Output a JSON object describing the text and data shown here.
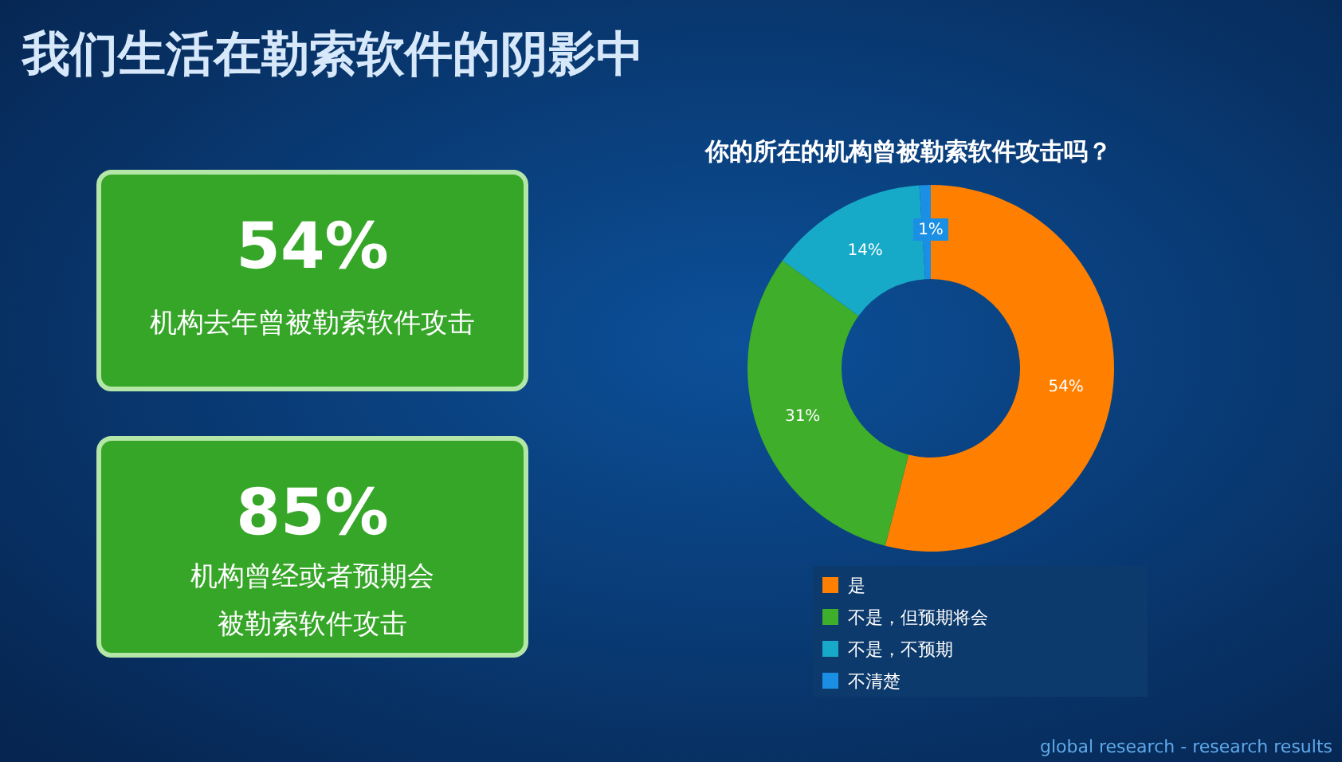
{
  "chart_data": [
    {
      "type": "other",
      "title": "我们生活在勒索软件的阴影中",
      "annotations": [
        "global research - research results"
      ]
    },
    {
      "type": "other",
      "title": "54%",
      "annotations": [
        "机构去年曾被勒索软件攻击"
      ]
    },
    {
      "type": "other",
      "title": "85%",
      "annotations": [
        "机构曾经或者预期会",
        "被勒索软件攻击"
      ]
    },
    {
      "type": "donut",
      "title": "你的所在的机构曾被勒索软件攻击吗？",
      "categories": [
        "是",
        "不是，但预期将会",
        "不是，不预期",
        "不清楚"
      ],
      "values": [
        54,
        31,
        14,
        1
      ],
      "colors": [
        "#ff8000",
        "#3fae2a",
        "#17aac8",
        "#1a8fe3"
      ],
      "value_labels": [
        "54%",
        "31%",
        "14%",
        "1%"
      ],
      "legend": "bottom"
    }
  ]
}
